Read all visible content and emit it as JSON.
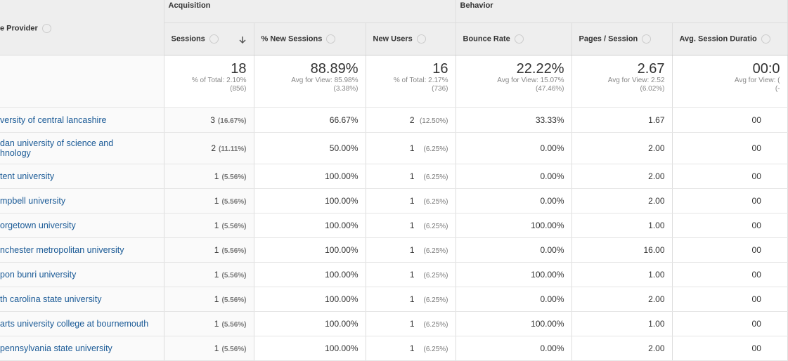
{
  "groups": [
    "Acquisition",
    "Behavior"
  ],
  "columns": [
    "e Provider",
    "Sessions",
    "% New Sessions",
    "New Users",
    "Bounce Rate",
    "Pages / Session",
    "Avg. Session Duratio"
  ],
  "summary": [
    {
      "value": "18",
      "line1": "% of Total: 2.10%",
      "line2": "(856)"
    },
    {
      "value": "88.89%",
      "line1": "Avg for View: 85.98%",
      "line2": "(3.38%)"
    },
    {
      "value": "16",
      "line1": "% of Total: 2.17%",
      "line2": "(736)"
    },
    {
      "value": "22.22%",
      "line1": "Avg for View: 15.07%",
      "line2": "(47.46%)"
    },
    {
      "value": "2.67",
      "line1": "Avg for View: 2.52",
      "line2": "(6.02%)"
    },
    {
      "value": "00:0",
      "line1": "Avg for View: (",
      "line2": "(-"
    }
  ],
  "rows": [
    [
      "versity of central lancashire",
      "3",
      "(16.67%)",
      "66.67%",
      "2",
      "(12.50%)",
      "33.33%",
      "1.67",
      "00"
    ],
    [
      "dan university of science and\nhnology",
      "2",
      "(11.11%)",
      "50.00%",
      "1",
      "(6.25%)",
      "0.00%",
      "2.00",
      "00"
    ],
    [
      "tent university",
      "1",
      "(5.56%)",
      "100.00%",
      "1",
      "(6.25%)",
      "0.00%",
      "2.00",
      "00"
    ],
    [
      "mpbell university",
      "1",
      "(5.56%)",
      "100.00%",
      "1",
      "(6.25%)",
      "0.00%",
      "2.00",
      "00"
    ],
    [
      "orgetown university",
      "1",
      "(5.56%)",
      "100.00%",
      "1",
      "(6.25%)",
      "100.00%",
      "1.00",
      "00"
    ],
    [
      "nchester metropolitan university",
      "1",
      "(5.56%)",
      "100.00%",
      "1",
      "(6.25%)",
      "0.00%",
      "16.00",
      "00"
    ],
    [
      "pon bunri university",
      "1",
      "(5.56%)",
      "100.00%",
      "1",
      "(6.25%)",
      "100.00%",
      "1.00",
      "00"
    ],
    [
      "th carolina state university",
      "1",
      "(5.56%)",
      "100.00%",
      "1",
      "(6.25%)",
      "0.00%",
      "2.00",
      "00"
    ],
    [
      " arts university college at bournemouth",
      "1",
      "(5.56%)",
      "100.00%",
      "1",
      "(6.25%)",
      "100.00%",
      "1.00",
      "00"
    ],
    [
      " pennsylvania state university",
      "1",
      "(5.56%)",
      "100.00%",
      "1",
      "(6.25%)",
      "0.00%",
      "2.00",
      "00"
    ]
  ]
}
